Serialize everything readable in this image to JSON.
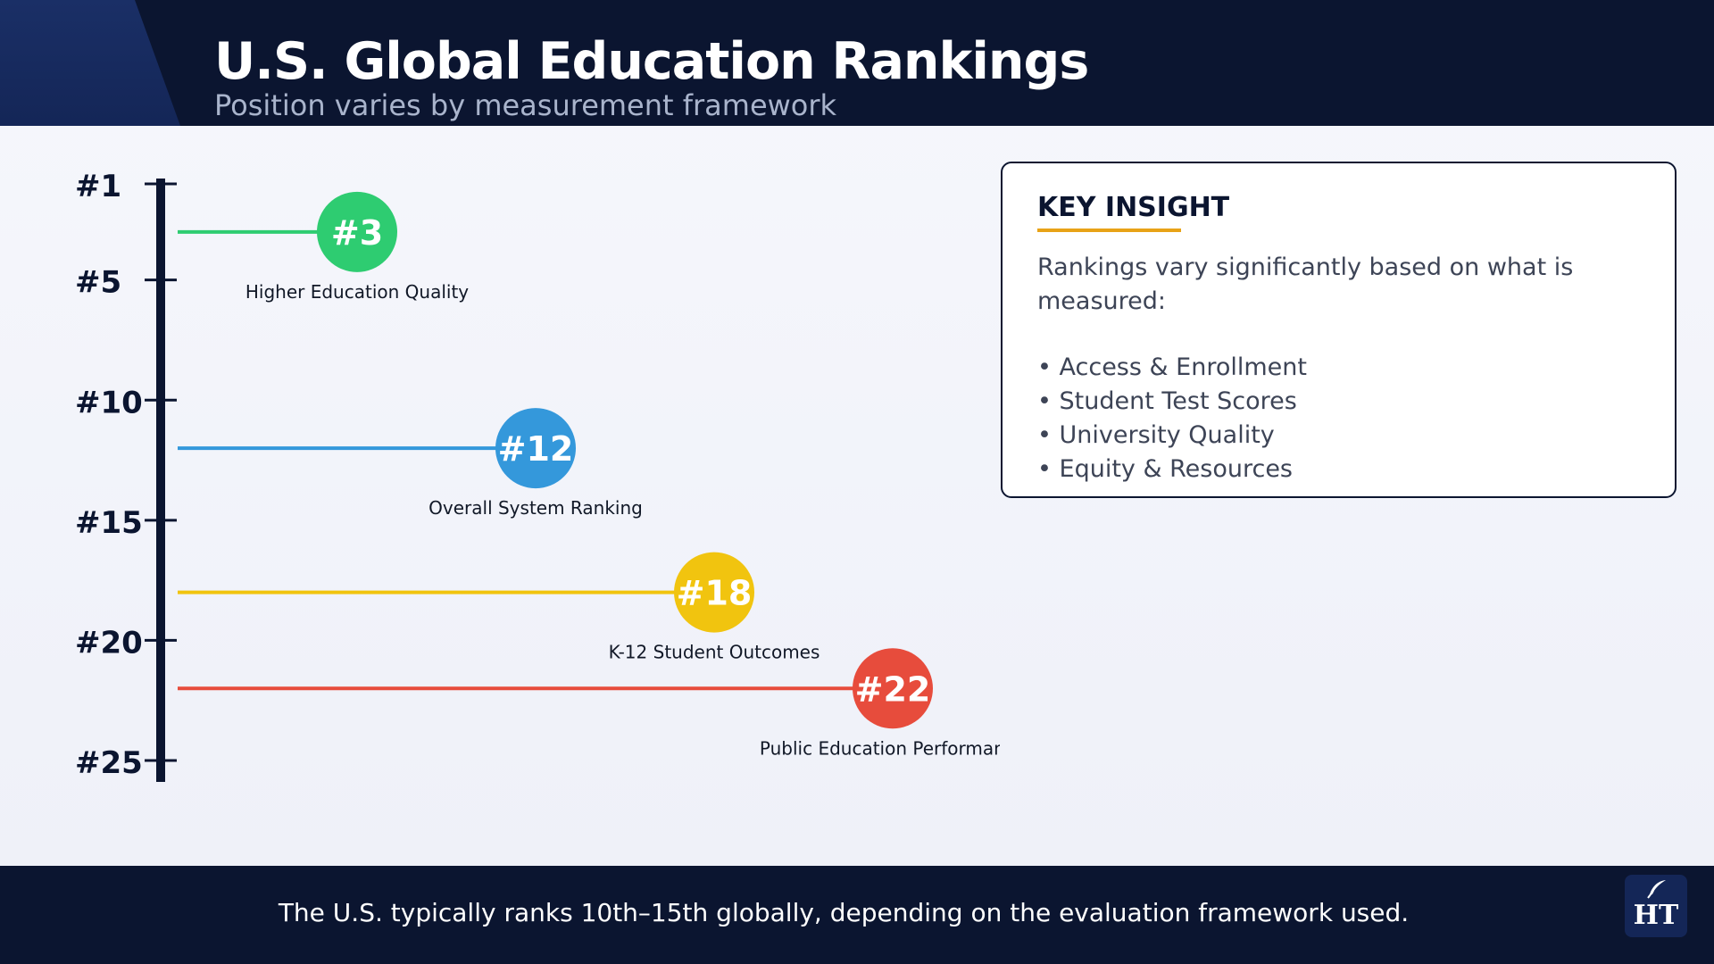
{
  "header": {
    "title": "U.S. Global Education Rankings",
    "subtitle": "Position varies by measurement framework"
  },
  "chart_data": {
    "type": "scatter",
    "axis": {
      "ticks": [
        1,
        5,
        10,
        15,
        20,
        25
      ],
      "tick_labels": [
        "#1",
        "#5",
        "#10",
        "#15",
        "#20",
        "#25"
      ],
      "range": [
        1,
        25
      ],
      "direction": "top-to-bottom"
    },
    "points": [
      {
        "rank": 3,
        "label": "#3",
        "category": "Higher Education Quality",
        "color": "#2ecc71"
      },
      {
        "rank": 12,
        "label": "#12",
        "category": "Overall System Ranking",
        "color": "#3498db"
      },
      {
        "rank": 18,
        "label": "#18",
        "category": "K-12 Student Outcomes",
        "color": "#f1c40f"
      },
      {
        "rank": 22,
        "label": "#22",
        "category": "Public Education Performance",
        "color": "#e74c3c"
      }
    ]
  },
  "insight": {
    "title": "KEY INSIGHT",
    "intro": "Rankings vary significantly based on what is measured:",
    "items": [
      "• Access & Enrollment",
      "• Student Test Scores",
      "• University Quality",
      "• Equity & Resources"
    ],
    "accent_color": "#e8a317"
  },
  "footer": {
    "text": "The U.S. typically ranks 10th–15th globally, depending on the evaluation framework used.",
    "logo_text": "HT"
  },
  "colors": {
    "navy": "#0b1530",
    "axis": "#0b1530"
  }
}
